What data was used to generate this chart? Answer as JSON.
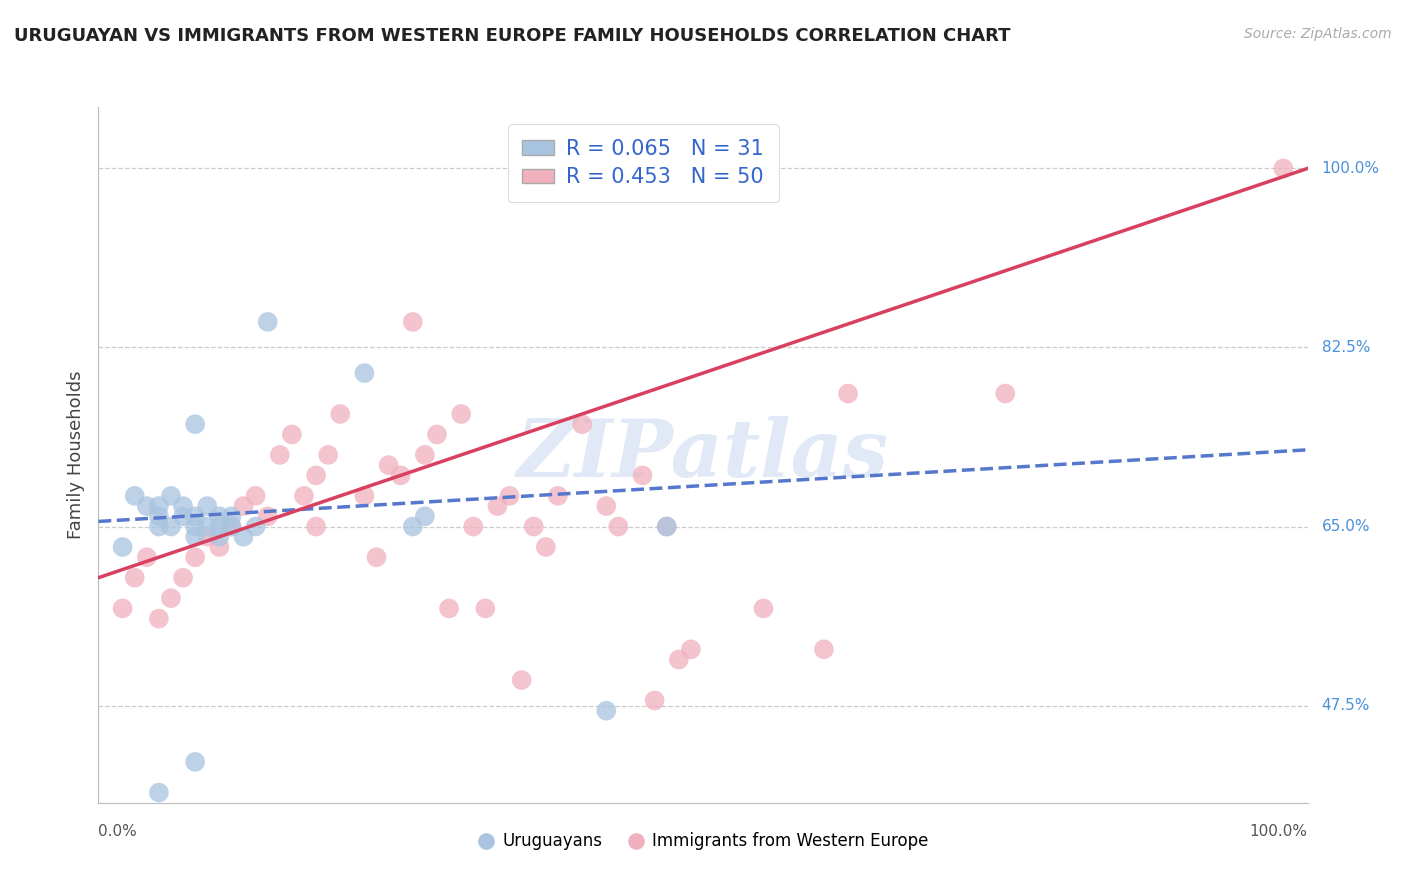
{
  "title": "URUGUAYAN VS IMMIGRANTS FROM WESTERN EUROPE FAMILY HOUSEHOLDS CORRELATION CHART",
  "source": "Source: ZipAtlas.com",
  "ylabel": "Family Households",
  "right_yticks": [
    47.5,
    65.0,
    82.5,
    100.0
  ],
  "xlim": [
    0.0,
    100.0
  ],
  "ylim": [
    38.0,
    106.0
  ],
  "blue_R": 0.065,
  "blue_N": 31,
  "pink_R": 0.453,
  "pink_N": 50,
  "blue_color": "#a8c4e0",
  "pink_color": "#f0b0be",
  "blue_line_color": "#5577cc",
  "pink_line_color": "#d94060",
  "legend_label_blue": "Uruguayans",
  "legend_label_pink": "Immigrants from Western Europe",
  "watermark": "ZIPatlas",
  "uruguayan_x": [
    2,
    3,
    4,
    5,
    5,
    5,
    6,
    6,
    7,
    7,
    8,
    8,
    8,
    8,
    9,
    9,
    10,
    10,
    10,
    11,
    11,
    12,
    13,
    14,
    22,
    26,
    27,
    8,
    5,
    42,
    47
  ],
  "uruguayan_y": [
    63,
    68,
    67,
    66,
    67,
    65,
    68,
    65,
    66,
    67,
    66,
    65,
    64,
    75,
    65,
    67,
    65,
    64,
    66,
    65,
    66,
    64,
    65,
    85,
    80,
    65,
    66,
    42,
    39,
    47,
    65
  ],
  "western_europe_x": [
    2,
    3,
    4,
    5,
    6,
    7,
    8,
    9,
    10,
    11,
    12,
    13,
    14,
    15,
    16,
    17,
    18,
    18,
    19,
    20,
    22,
    23,
    24,
    25,
    26,
    27,
    28,
    29,
    30,
    31,
    32,
    33,
    34,
    35,
    36,
    37,
    38,
    40,
    42,
    43,
    45,
    46,
    47,
    48,
    49,
    55,
    60,
    62,
    75,
    98
  ],
  "western_europe_y": [
    57,
    60,
    62,
    56,
    58,
    60,
    62,
    64,
    63,
    65,
    67,
    68,
    66,
    72,
    74,
    68,
    65,
    70,
    72,
    76,
    68,
    62,
    71,
    70,
    85,
    72,
    74,
    57,
    76,
    65,
    57,
    67,
    68,
    50,
    65,
    63,
    68,
    75,
    67,
    65,
    70,
    48,
    65,
    52,
    53,
    57,
    53,
    78,
    78,
    100
  ],
  "blue_line_x": [
    0,
    100
  ],
  "blue_line_y_start": 65.5,
  "blue_line_y_end": 72.5,
  "pink_line_x": [
    0,
    100
  ],
  "pink_line_y_start": 60.0,
  "pink_line_y_end": 100.0
}
